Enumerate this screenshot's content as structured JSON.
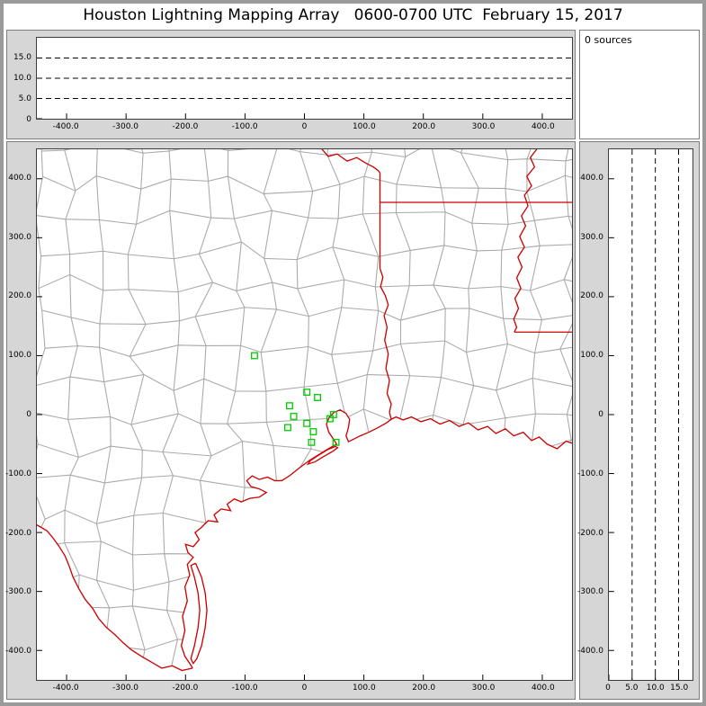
{
  "title": "Houston Lightning Mapping Array   0600-0700 UTC  February 15, 2017",
  "sources_panel": {
    "label": "0 sources"
  },
  "colors": {
    "panel_bg": "#d6d6d6",
    "plot_bg": "#ffffff",
    "frame_border": "#9a9a9a",
    "panel_border": "#7d7d7d",
    "plot_border": "#3c3c3c",
    "grid_dash": "#000000",
    "county": "#a8a8a8",
    "state": "#cc0000",
    "station": "#00cc00",
    "text": "#000000"
  },
  "chart_data": [
    {
      "id": "altitude_vs_eastwest_km",
      "type": "scatter",
      "title": "",
      "xlim": [
        -450,
        450
      ],
      "ylim": [
        0,
        20
      ],
      "x_ticks": {
        "values": [
          -400,
          -300,
          -200,
          -100,
          0,
          100,
          200,
          300,
          400
        ],
        "labels": [
          "-400.0",
          "-300.0",
          "-200.0",
          "-100.0",
          "0",
          "100.0",
          "200.0",
          "300.0",
          "400.0"
        ]
      },
      "y_ticks": {
        "values": [
          15,
          10,
          5,
          0
        ],
        "labels": [
          "15.0",
          "10.0",
          "5.0",
          "0"
        ]
      },
      "dashed_hlines": [
        5,
        10,
        15
      ],
      "points": []
    },
    {
      "id": "plan_view_map_km",
      "type": "scatter",
      "title": "",
      "xlim": [
        -450,
        450
      ],
      "ylim": [
        -450,
        450
      ],
      "x_ticks": {
        "values": [
          -400,
          -300,
          -200,
          -100,
          0,
          100,
          200,
          300,
          400
        ],
        "labels": [
          "-400.0",
          "-300.0",
          "-200.0",
          "-100.0",
          "0",
          "100.0",
          "200.0",
          "300.0",
          "400.0"
        ]
      },
      "y_ticks": {
        "values": [
          400,
          300,
          200,
          100,
          0,
          -100,
          -200,
          -300,
          -400
        ],
        "labels": [
          "400.0",
          "300.0",
          "200.0",
          "100.0",
          "0",
          "-100.0",
          "-200.0",
          "-300.0",
          "-400.0"
        ]
      },
      "points": [],
      "stations_km": [
        [
          -84,
          100
        ],
        [
          4,
          38
        ],
        [
          22,
          29
        ],
        [
          -25,
          15
        ],
        [
          -18,
          -3
        ],
        [
          -28,
          -22
        ],
        [
          4,
          -15
        ],
        [
          15,
          -29
        ],
        [
          49,
          0
        ],
        [
          43,
          -7
        ],
        [
          12,
          -47
        ],
        [
          53,
          -47
        ]
      ],
      "geo": {
        "red_lines": [
          [
            [
              28,
              452
            ],
            [
              40,
              438
            ],
            [
              55,
              442
            ],
            [
              72,
              430
            ],
            [
              88,
              436
            ],
            [
              104,
              426
            ],
            [
              116,
              420
            ],
            [
              124,
              414
            ],
            [
              127,
              410
            ]
          ],
          [
            [
              127,
              410
            ],
            [
              127,
              248
            ]
          ],
          [
            [
              127,
              360
            ],
            [
              455,
              360
            ]
          ],
          [
            [
              127,
              248
            ],
            [
              132,
              233
            ],
            [
              128,
              217
            ],
            [
              136,
              202
            ],
            [
              141,
              186
            ],
            [
              134,
              168
            ],
            [
              139,
              148
            ],
            [
              135,
              126
            ],
            [
              141,
              103
            ],
            [
              137,
              78
            ],
            [
              143,
              58
            ],
            [
              139,
              36
            ],
            [
              146,
              18
            ],
            [
              143,
              4
            ],
            [
              146,
              -8
            ]
          ],
          [
            [
              392,
              452
            ],
            [
              380,
              436
            ],
            [
              387,
              420
            ],
            [
              374,
              404
            ],
            [
              382,
              388
            ],
            [
              370,
              372
            ],
            [
              376,
              354
            ],
            [
              365,
              337
            ],
            [
              372,
              320
            ],
            [
              362,
              302
            ],
            [
              370,
              284
            ],
            [
              359,
              267
            ],
            [
              366,
              250
            ],
            [
              357,
              232
            ],
            [
              364,
              214
            ],
            [
              354,
              197
            ],
            [
              360,
              180
            ],
            [
              352,
              162
            ],
            [
              357,
              148
            ],
            [
              353,
              140
            ]
          ],
          [
            [
              353,
              140
            ],
            [
              455,
              140
            ]
          ]
        ],
        "coast": [
          [
            460,
            -52
          ],
          [
            440,
            -45
          ],
          [
            425,
            -58
          ],
          [
            408,
            -50
          ],
          [
            395,
            -38
          ],
          [
            382,
            -44
          ],
          [
            368,
            -30
          ],
          [
            352,
            -36
          ],
          [
            338,
            -24
          ],
          [
            322,
            -32
          ],
          [
            308,
            -20
          ],
          [
            292,
            -26
          ],
          [
            276,
            -14
          ],
          [
            260,
            -20
          ],
          [
            244,
            -10
          ],
          [
            228,
            -16
          ],
          [
            212,
            -7
          ],
          [
            196,
            -12
          ],
          [
            180,
            -4
          ],
          [
            166,
            -9
          ],
          [
            154,
            -4
          ],
          [
            146,
            -8
          ],
          [
            138,
            -14
          ],
          [
            124,
            -22
          ],
          [
            108,
            -30
          ],
          [
            94,
            -36
          ],
          [
            82,
            -42
          ],
          [
            74,
            -46
          ],
          [
            70,
            -36
          ],
          [
            74,
            -22
          ],
          [
            76,
            -8
          ],
          [
            70,
            2
          ],
          [
            60,
            8
          ],
          [
            50,
            4
          ],
          [
            42,
            -4
          ],
          [
            37,
            -16
          ],
          [
            41,
            -30
          ],
          [
            49,
            -42
          ],
          [
            54,
            -50
          ],
          [
            40,
            -58
          ],
          [
            24,
            -68
          ],
          [
            8,
            -78
          ],
          [
            -8,
            -90
          ],
          [
            -24,
            -103
          ],
          [
            -38,
            -112
          ],
          [
            -50,
            -112
          ],
          [
            -62,
            -106
          ],
          [
            -76,
            -110
          ],
          [
            -88,
            -104
          ],
          [
            -97,
            -112
          ],
          [
            -90,
            -122
          ],
          [
            -76,
            -126
          ],
          [
            -64,
            -132
          ],
          [
            -76,
            -140
          ],
          [
            -92,
            -142
          ],
          [
            -106,
            -148
          ],
          [
            -118,
            -143
          ],
          [
            -130,
            -152
          ],
          [
            -124,
            -163
          ],
          [
            -140,
            -160
          ],
          [
            -152,
            -170
          ],
          [
            -146,
            -182
          ],
          [
            -162,
            -180
          ],
          [
            -174,
            -192
          ],
          [
            -184,
            -200
          ],
          [
            -177,
            -212
          ],
          [
            -187,
            -224
          ],
          [
            -200,
            -220
          ],
          [
            -196,
            -234
          ],
          [
            -187,
            -242
          ],
          [
            -197,
            -254
          ],
          [
            -193,
            -272
          ],
          [
            -201,
            -292
          ],
          [
            -197,
            -316
          ],
          [
            -205,
            -342
          ],
          [
            -201,
            -366
          ],
          [
            -207,
            -392
          ],
          [
            -201,
            -410
          ],
          [
            -193,
            -422
          ],
          [
            -188,
            -430
          ]
        ],
        "rio_grande": [
          [
            -188,
            -430
          ],
          [
            -206,
            -434
          ],
          [
            -222,
            -426
          ],
          [
            -240,
            -430
          ],
          [
            -257,
            -420
          ],
          [
            -274,
            -410
          ],
          [
            -291,
            -399
          ],
          [
            -306,
            -386
          ],
          [
            -319,
            -373
          ],
          [
            -333,
            -361
          ],
          [
            -346,
            -346
          ],
          [
            -356,
            -329
          ],
          [
            -369,
            -313
          ],
          [
            -379,
            -296
          ],
          [
            -389,
            -276
          ],
          [
            -396,
            -256
          ],
          [
            -403,
            -239
          ],
          [
            -413,
            -223
          ],
          [
            -423,
            -209
          ],
          [
            -433,
            -197
          ],
          [
            -452,
            -186
          ]
        ],
        "islands": [
          [
            [
              -183,
              -252
            ],
            [
              -173,
              -276
            ],
            [
              -167,
              -302
            ],
            [
              -164,
              -332
            ],
            [
              -167,
              -362
            ],
            [
              -173,
              -392
            ],
            [
              -181,
              -414
            ],
            [
              -187,
              -422
            ],
            [
              -191,
              -414
            ],
            [
              -185,
              -392
            ],
            [
              -179,
              -362
            ],
            [
              -176,
              -332
            ],
            [
              -179,
              -302
            ],
            [
              -185,
              -276
            ],
            [
              -191,
              -256
            ],
            [
              -183,
              -252
            ]
          ],
          [
            [
              52,
              -54
            ],
            [
              38,
              -60
            ],
            [
              22,
              -70
            ],
            [
              10,
              -78
            ],
            [
              6,
              -84
            ],
            [
              18,
              -80
            ],
            [
              34,
              -70
            ],
            [
              48,
              -62
            ],
            [
              56,
              -56
            ],
            [
              52,
              -54
            ]
          ]
        ],
        "counties": {
          "step": 56,
          "jitter": 16,
          "seed": 987654321
        }
      }
    },
    {
      "id": "altitude_vs_northsouth_km",
      "type": "scatter",
      "title": "",
      "xlim": [
        0,
        18
      ],
      "ylim": [
        -450,
        450
      ],
      "x_ticks": {
        "values": [
          0,
          5,
          10,
          15
        ],
        "labels": [
          "0",
          "5.0",
          "10.0",
          "15.0"
        ]
      },
      "y_ticks": {
        "values": [
          400,
          300,
          200,
          100,
          0,
          -100,
          -200,
          -300,
          -400
        ],
        "labels": [
          "400.0",
          "300.0",
          "200.0",
          "100.0",
          "0",
          "-100.0",
          "-200.0",
          "-300.0",
          "-400.0"
        ]
      },
      "dashed_vlines": [
        5,
        10,
        15
      ],
      "points": []
    }
  ]
}
